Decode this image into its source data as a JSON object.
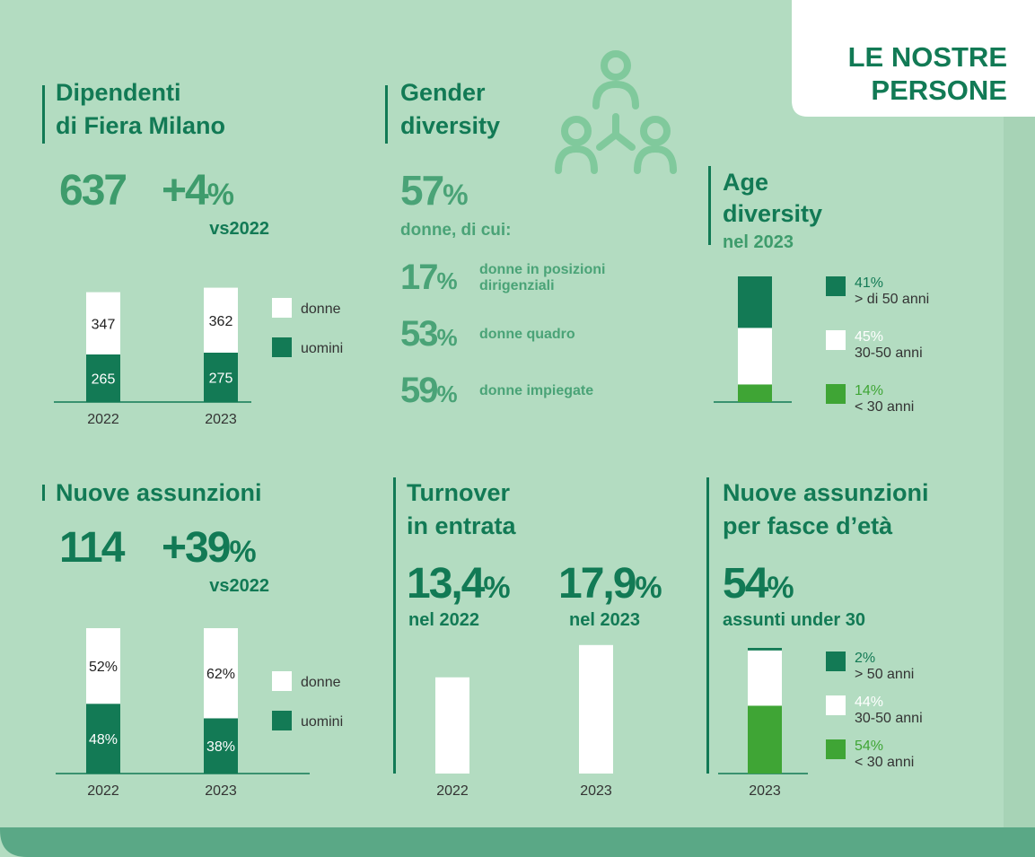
{
  "badge": [
    "LE NOSTRE",
    "PERSONE"
  ],
  "employees": {
    "title": [
      "Dipendenti",
      "di Fiera Milano"
    ],
    "total": 637,
    "change": "+4",
    "unit": "%",
    "comparison": "vs2022",
    "chart": {
      "type": "stacked-bar",
      "categories": [
        "2022",
        "2023"
      ],
      "series": [
        {
          "name": "donne",
          "color": "#ffffff",
          "values": [
            347,
            362
          ]
        },
        {
          "name": "uomini",
          "color": "#137a55",
          "values": [
            265,
            275
          ]
        }
      ]
    }
  },
  "gender": {
    "title": [
      "Gender",
      "diversity"
    ],
    "share": 57,
    "unit": "%",
    "caption": "donne, di cui:",
    "items": [
      {
        "value": 17,
        "label": [
          "donne in posizioni",
          "dirigenziali"
        ]
      },
      {
        "value": 53,
        "label": [
          "donne quadro"
        ]
      },
      {
        "value": 59,
        "label": [
          "donne impiegate"
        ]
      }
    ]
  },
  "age": {
    "title": [
      "Age",
      "diversity"
    ],
    "subtitle": "nel 2023",
    "chart": {
      "type": "stacked-bar",
      "segments": [
        {
          "value": 41,
          "value_label": "41%",
          "name": "> di 50 anni",
          "color": "#137a55"
        },
        {
          "value": 45,
          "value_label": "45%",
          "name": "30-50 anni",
          "color": "#ffffff"
        },
        {
          "value": 14,
          "value_label": "14%",
          "name": "< 30 anni",
          "color": "#3fa535"
        }
      ]
    }
  },
  "hires": {
    "title": [
      "Nuove assunzioni"
    ],
    "total": 114,
    "change": "+39",
    "unit": "%",
    "comparison": "vs2022",
    "chart": {
      "type": "stacked-bar",
      "categories": [
        "2022",
        "2023"
      ],
      "series": [
        {
          "name": "donne",
          "color": "#ffffff",
          "values": [
            52,
            62
          ],
          "value_labels": [
            "52%",
            "62%"
          ]
        },
        {
          "name": "uomini",
          "color": "#137a55",
          "values": [
            48,
            38
          ],
          "value_labels": [
            "48%",
            "38%"
          ]
        }
      ]
    }
  },
  "turnover": {
    "title": [
      "Turnover",
      "in entrata"
    ],
    "chart": {
      "type": "bar",
      "categories": [
        "2022",
        "2023"
      ],
      "values": [
        13.4,
        17.9
      ],
      "value_labels": [
        "13,4",
        "17,9"
      ],
      "unit": "%",
      "captions": [
        "nel 2022",
        "nel 2023"
      ],
      "color": "#ffffff"
    }
  },
  "hires_by_age": {
    "title": [
      "Nuove assunzioni",
      "per fasce d’età"
    ],
    "share": 54,
    "unit": "%",
    "caption": "assunti under 30",
    "chart": {
      "type": "stacked-bar",
      "categories": [
        "2023"
      ],
      "segments": [
        {
          "value": 2,
          "value_label": "2%",
          "name": "> 50 anni",
          "color": "#137a55"
        },
        {
          "value": 44,
          "value_label": "44%",
          "name": "30-50 anni",
          "color": "#ffffff"
        },
        {
          "value": 54,
          "value_label": "54%",
          "name": "< 30 anni",
          "color": "#3fa535"
        }
      ]
    }
  }
}
